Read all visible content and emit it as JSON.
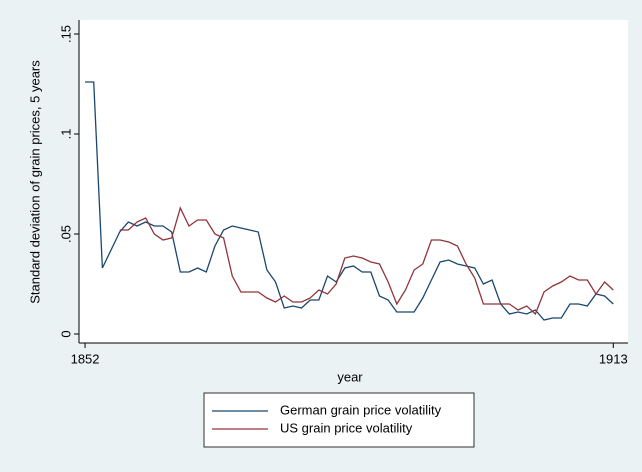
{
  "chart_data": {
    "type": "line",
    "ylabel": "Standard deviation of grain prices, 5 years",
    "xlabel": "year",
    "x": [
      1852,
      1853,
      1854,
      1855,
      1856,
      1857,
      1858,
      1859,
      1860,
      1861,
      1862,
      1863,
      1864,
      1865,
      1866,
      1867,
      1868,
      1869,
      1870,
      1871,
      1872,
      1873,
      1874,
      1875,
      1876,
      1877,
      1878,
      1879,
      1880,
      1881,
      1882,
      1883,
      1884,
      1885,
      1886,
      1887,
      1888,
      1889,
      1890,
      1891,
      1892,
      1893,
      1894,
      1895,
      1896,
      1897,
      1898,
      1899,
      1900,
      1901,
      1902,
      1903,
      1904,
      1905,
      1906,
      1907,
      1908,
      1909,
      1910,
      1911,
      1912,
      1913
    ],
    "series": [
      {
        "name": "German grain price volatility",
        "color": "#1a476f",
        "values": [
          0.126,
          0.126,
          0.033,
          0.042,
          0.051,
          0.056,
          0.054,
          0.056,
          0.054,
          0.054,
          0.051,
          0.031,
          0.031,
          0.033,
          0.031,
          0.044,
          0.052,
          0.054,
          0.053,
          0.052,
          0.051,
          0.032,
          0.026,
          0.013,
          0.014,
          0.013,
          0.017,
          0.017,
          0.029,
          0.026,
          0.033,
          0.034,
          0.031,
          0.031,
          0.019,
          0.017,
          0.011,
          0.011,
          0.011,
          0.018,
          0.027,
          0.036,
          0.037,
          0.035,
          0.034,
          0.033,
          0.025,
          0.027,
          0.015,
          0.01,
          0.011,
          0.01,
          0.012,
          0.007,
          0.008,
          0.008,
          0.015,
          0.015,
          0.014,
          0.02,
          0.019,
          0.015
        ]
      },
      {
        "name": "US grain price volatility",
        "color": "#90353b",
        "values": [
          null,
          null,
          null,
          null,
          0.052,
          0.052,
          0.056,
          0.058,
          0.05,
          0.047,
          0.048,
          0.063,
          0.054,
          0.057,
          0.057,
          0.05,
          0.048,
          0.029,
          0.021,
          0.021,
          0.021,
          0.018,
          0.016,
          0.019,
          0.016,
          0.016,
          0.018,
          0.022,
          0.02,
          0.025,
          0.038,
          0.039,
          0.038,
          0.036,
          0.035,
          0.026,
          0.015,
          0.022,
          0.032,
          0.035,
          0.047,
          0.047,
          0.046,
          0.044,
          0.035,
          0.028,
          0.015,
          0.015,
          0.015,
          0.015,
          0.012,
          0.014,
          0.01,
          0.021,
          0.024,
          0.026,
          0.029,
          0.027,
          0.027,
          0.02,
          0.026,
          0.022
        ]
      }
    ],
    "xlim": [
      1851.3,
      1914.7
    ],
    "xticks": [
      1852,
      1913
    ],
    "ylim": [
      -0.0045,
      0.157
    ],
    "yticks": [
      0,
      {
        "value": 0.05,
        "label": ".05"
      },
      {
        "value": 0.1,
        "label": ".1"
      },
      {
        "value": 0.15,
        "label": ".15"
      }
    ],
    "grid": false
  }
}
